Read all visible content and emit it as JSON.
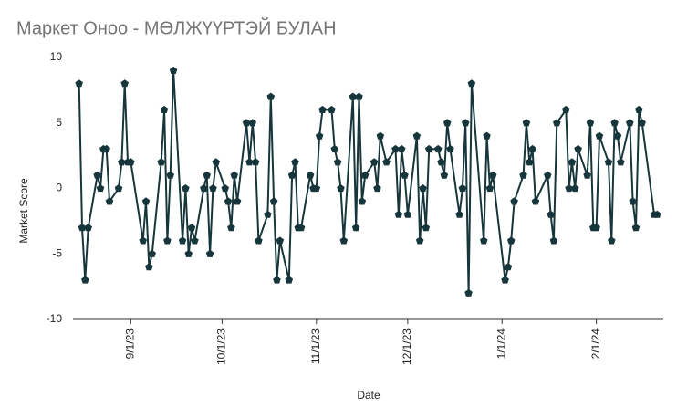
{
  "chart_data": {
    "type": "line",
    "title": "Маркет Оноо - МӨЛЖҮҮРТЭЙ БУЛАН",
    "x_label": "Date",
    "y_label": "Market Score",
    "x": [
      "2023-08-15",
      "2023-08-16",
      "2023-08-17",
      "2023-08-18",
      "2023-08-21",
      "2023-08-22",
      "2023-08-23",
      "2023-08-24",
      "2023-08-25",
      "2023-08-28",
      "2023-08-29",
      "2023-08-30",
      "2023-08-31",
      "2023-09-01",
      "2023-09-05",
      "2023-09-06",
      "2023-09-07",
      "2023-09-08",
      "2023-09-11",
      "2023-09-12",
      "2023-09-13",
      "2023-09-14",
      "2023-09-15",
      "2023-09-18",
      "2023-09-19",
      "2023-09-20",
      "2023-09-21",
      "2023-09-22",
      "2023-09-25",
      "2023-09-26",
      "2023-09-27",
      "2023-09-28",
      "2023-09-29",
      "2023-10-02",
      "2023-10-03",
      "2023-10-04",
      "2023-10-05",
      "2023-10-06",
      "2023-10-09",
      "2023-10-10",
      "2023-10-11",
      "2023-10-12",
      "2023-10-13",
      "2023-10-16",
      "2023-10-17",
      "2023-10-18",
      "2023-10-19",
      "2023-10-20",
      "2023-10-23",
      "2023-10-24",
      "2023-10-25",
      "2023-10-26",
      "2023-10-27",
      "2023-10-30",
      "2023-10-31",
      "2023-11-01",
      "2023-11-02",
      "2023-11-03",
      "2023-11-06",
      "2023-11-07",
      "2023-11-08",
      "2023-11-09",
      "2023-11-10",
      "2023-11-13",
      "2023-11-14",
      "2023-11-15",
      "2023-11-16",
      "2023-11-17",
      "2023-11-20",
      "2023-11-21",
      "2023-11-22",
      "2023-11-24",
      "2023-11-27",
      "2023-11-28",
      "2023-11-29",
      "2023-11-30",
      "2023-12-01",
      "2023-12-04",
      "2023-12-05",
      "2023-12-06",
      "2023-12-07",
      "2023-12-08",
      "2023-12-11",
      "2023-12-12",
      "2023-12-13",
      "2023-12-14",
      "2023-12-15",
      "2023-12-18",
      "2023-12-19",
      "2023-12-20",
      "2023-12-21",
      "2023-12-22",
      "2023-12-26",
      "2023-12-27",
      "2023-12-28",
      "2023-12-29",
      "2024-01-02",
      "2024-01-03",
      "2024-01-04",
      "2024-01-05",
      "2024-01-08",
      "2024-01-09",
      "2024-01-10",
      "2024-01-11",
      "2024-01-12",
      "2024-01-16",
      "2024-01-17",
      "2024-01-18",
      "2024-01-19",
      "2024-01-22",
      "2024-01-23",
      "2024-01-24",
      "2024-01-25",
      "2024-01-26",
      "2024-01-29",
      "2024-01-30",
      "2024-01-31",
      "2024-02-01",
      "2024-02-02",
      "2024-02-05",
      "2024-02-06",
      "2024-02-07",
      "2024-02-08",
      "2024-02-09",
      "2024-02-12",
      "2024-02-13",
      "2024-02-14",
      "2024-02-15",
      "2024-02-16",
      "2024-02-20",
      "2024-02-21"
    ],
    "values": [
      8,
      -3,
      -7,
      -3,
      1,
      0,
      3,
      3,
      -1,
      0,
      2,
      8,
      2,
      2,
      -4,
      -1,
      -6,
      -5,
      2,
      6,
      -4,
      1,
      9,
      -4,
      0,
      -5,
      -3,
      -4,
      0,
      1,
      -5,
      0,
      2,
      0,
      -1,
      -3,
      1,
      -1,
      5,
      2,
      5,
      2,
      -4,
      -2,
      7,
      -1,
      -7,
      -4,
      -7,
      1,
      2,
      -3,
      -3,
      1,
      0,
      0,
      4,
      6,
      6,
      3,
      2,
      0,
      -4,
      7,
      -3,
      7,
      -1,
      1,
      2,
      0,
      4,
      2,
      3,
      -2,
      3,
      1,
      -2,
      4,
      -4,
      0,
      -3,
      3,
      3,
      2,
      1,
      5,
      3,
      -2,
      0,
      5,
      -8,
      8,
      -4,
      4,
      0,
      1,
      -7,
      -6,
      -4,
      -1,
      1,
      5,
      2,
      3,
      -1,
      1,
      -2,
      -4,
      5,
      6,
      0,
      2,
      0,
      3,
      1,
      5,
      -3,
      -3,
      4,
      2,
      -4,
      5,
      4,
      2,
      5,
      -1,
      -3,
      6,
      5,
      -2,
      -2
    ],
    "color": "#17363b",
    "xlim": [
      "2023-08-13",
      "2024-02-23"
    ],
    "xticks": [
      {
        "value": "2023-09-01",
        "label": "9/1/23"
      },
      {
        "value": "2023-10-01",
        "label": "10/1/23"
      },
      {
        "value": "2023-11-01",
        "label": "11/1/23"
      },
      {
        "value": "2023-12-01",
        "label": "12/1/23"
      },
      {
        "value": "2024-01-01",
        "label": "1/1/24"
      },
      {
        "value": "2024-02-01",
        "label": "2/1/24"
      }
    ],
    "ylim": [
      -10,
      10
    ],
    "yticks": [
      10,
      5,
      0,
      -5,
      -10
    ],
    "grid": false
  }
}
